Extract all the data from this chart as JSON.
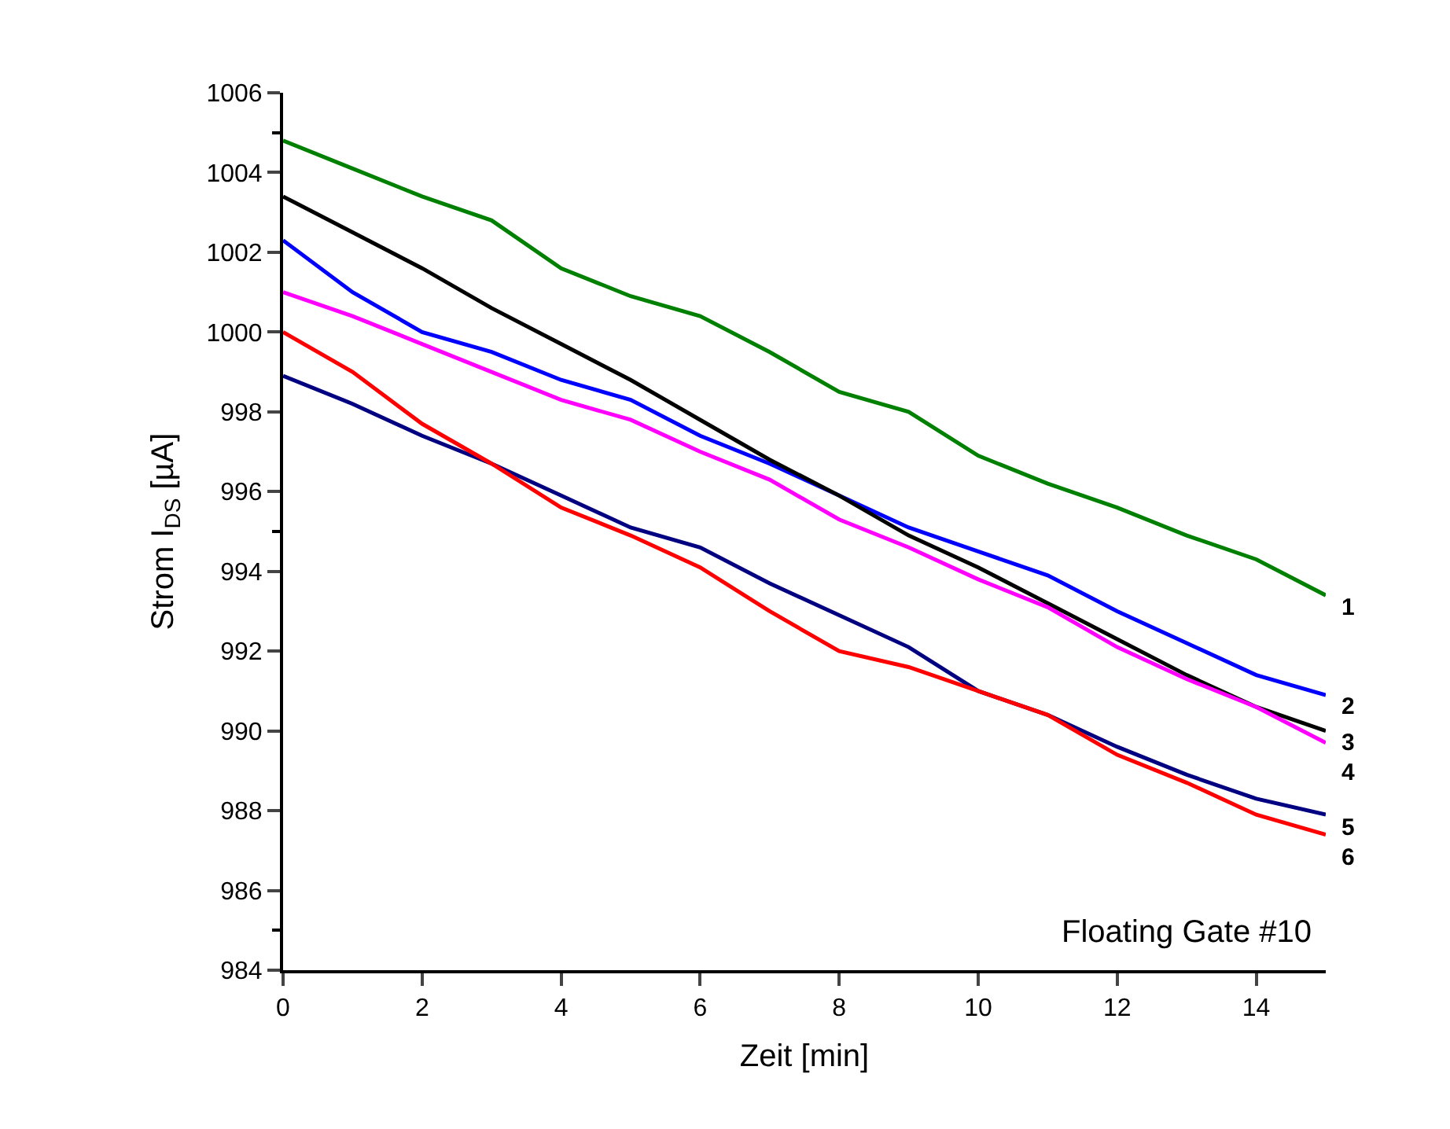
{
  "chart_data": {
    "type": "line",
    "xlabel": "Zeit [min]",
    "ylabel": "Strom I$_{DS}$ [µA]",
    "x": [
      0,
      1,
      2,
      3,
      4,
      5,
      6,
      7,
      8,
      9,
      10,
      11,
      12,
      13,
      14,
      15
    ],
    "series": [
      {
        "name": "1",
        "color": "#008000",
        "values": [
          1004.8,
          1004.1,
          1003.4,
          1002.8,
          1001.6,
          1000.9,
          1000.4,
          999.5,
          998.5,
          998.0,
          996.9,
          996.2,
          995.6,
          994.9,
          994.3,
          993.4
        ]
      },
      {
        "name": "2",
        "color": "#0000ff",
        "values": [
          1002.3,
          1001.0,
          1000.0,
          999.5,
          998.8,
          998.3,
          997.4,
          996.7,
          995.9,
          995.1,
          994.5,
          993.9,
          993.0,
          992.2,
          991.4,
          990.9
        ]
      },
      {
        "name": "3",
        "color": "#000000",
        "values": [
          1003.4,
          1002.5,
          1001.6,
          1000.6,
          999.7,
          998.8,
          997.8,
          996.8,
          995.9,
          994.9,
          994.1,
          993.2,
          992.3,
          991.4,
          990.6,
          990.0
        ]
      },
      {
        "name": "4",
        "color": "#ff00ff",
        "values": [
          1001.0,
          1000.4,
          999.7,
          999.0,
          998.3,
          997.8,
          997.0,
          996.3,
          995.3,
          994.6,
          993.8,
          993.1,
          992.1,
          991.3,
          990.6,
          989.7
        ]
      },
      {
        "name": "5",
        "color": "#000080",
        "values": [
          998.9,
          998.2,
          997.4,
          996.7,
          995.9,
          995.1,
          994.6,
          993.7,
          992.9,
          992.1,
          991.0,
          990.4,
          989.6,
          988.9,
          988.3,
          987.9
        ]
      },
      {
        "name": "6",
        "color": "#ff0000",
        "values": [
          1000.0,
          999.0,
          997.7,
          996.7,
          995.6,
          994.9,
          994.1,
          993.0,
          992.0,
          991.6,
          991.0,
          990.4,
          989.4,
          988.7,
          987.9,
          987.4
        ]
      }
    ],
    "xlim": [
      0,
      15
    ],
    "xticks": [
      0,
      2,
      4,
      6,
      8,
      10,
      12,
      14
    ],
    "ylim": [
      984,
      1006
    ],
    "yticks": [
      984,
      986,
      988,
      990,
      992,
      994,
      996,
      998,
      1000,
      1002,
      1004,
      1006
    ],
    "annotations": [
      "Floating Gate #10"
    ],
    "legend": false,
    "marker": "none",
    "line_style": "solid"
  }
}
